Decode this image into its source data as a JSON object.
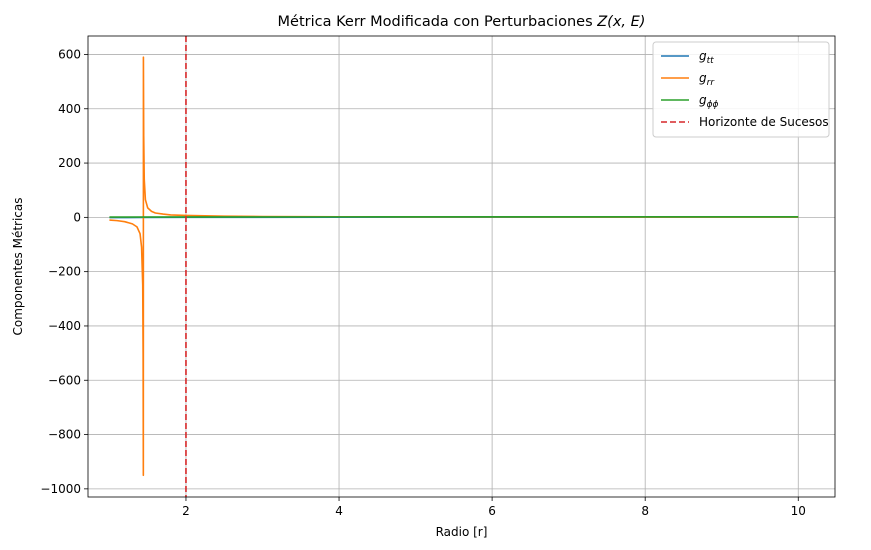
{
  "chart_data": {
    "type": "line",
    "title_text": "Métrica Kerr Modificada con Perturbaciones ",
    "title_math": "Z(x, E)",
    "xlabel": "Radio [r]",
    "ylabel": "Componentes Métricas",
    "xlim": [
      0.72,
      10.48
    ],
    "ylim": [
      -1030,
      668
    ],
    "xticks": [
      2,
      4,
      6,
      8,
      10
    ],
    "yticks": [
      -1000,
      -800,
      -600,
      -400,
      -200,
      0,
      200,
      400,
      600
    ],
    "grid": true,
    "legend_position": "top-right",
    "series": [
      {
        "name": "g",
        "name_sub": "tt",
        "color": "#1f77b4",
        "style": "solid",
        "points": [
          [
            1.0,
            -1.0
          ],
          [
            1.44,
            -0.3
          ],
          [
            2.0,
            0.0
          ],
          [
            4.0,
            0.5
          ],
          [
            6.0,
            0.67
          ],
          [
            8.0,
            0.75
          ],
          [
            10.0,
            0.8
          ]
        ]
      },
      {
        "name": "g",
        "name_sub": "rr",
        "color": "#ff7f0e",
        "style": "solid",
        "points": [
          [
            1.0,
            -10
          ],
          [
            1.1,
            -12
          ],
          [
            1.2,
            -16
          ],
          [
            1.3,
            -24
          ],
          [
            1.36,
            -35
          ],
          [
            1.4,
            -60
          ],
          [
            1.42,
            -110
          ],
          [
            1.435,
            -250
          ],
          [
            1.44,
            -500
          ],
          [
            1.443,
            -950
          ],
          [
            1.444,
            590
          ],
          [
            1.448,
            300
          ],
          [
            1.455,
            140
          ],
          [
            1.47,
            65
          ],
          [
            1.5,
            35
          ],
          [
            1.55,
            22
          ],
          [
            1.6,
            16
          ],
          [
            1.7,
            12
          ],
          [
            1.8,
            9
          ],
          [
            2.0,
            7
          ],
          [
            2.5,
            4.5
          ],
          [
            3.0,
            3.2
          ],
          [
            4.0,
            2.2
          ],
          [
            5.0,
            1.7
          ],
          [
            6.0,
            1.45
          ],
          [
            8.0,
            1.25
          ],
          [
            10.0,
            1.15
          ]
        ]
      },
      {
        "name": "g",
        "name_sub": "ϕϕ",
        "color": "#2ca02c",
        "style": "solid",
        "points": [
          [
            1.0,
            1.0
          ],
          [
            2.0,
            1.5
          ],
          [
            4.0,
            1.8
          ],
          [
            6.0,
            1.9
          ],
          [
            8.0,
            2.0
          ],
          [
            10.0,
            2.0
          ]
        ]
      }
    ],
    "vlines": [
      {
        "name": "Horizonte de Sucesos",
        "x": 2.0,
        "color": "#d62728",
        "style": "dashed"
      }
    ]
  }
}
